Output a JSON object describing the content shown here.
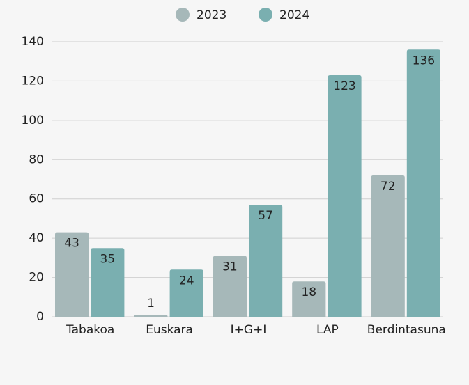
{
  "chart_data": {
    "type": "bar",
    "categories": [
      "Tabakoa",
      "Euskara",
      "I+G+I",
      "LAP",
      "Berdintasuna"
    ],
    "series": [
      {
        "name": "2023",
        "color": "#a6b8b9",
        "values": [
          43,
          1,
          31,
          18,
          72
        ]
      },
      {
        "name": "2024",
        "color": "#7aafb0",
        "values": [
          35,
          24,
          57,
          123,
          136
        ]
      }
    ],
    "ylim": [
      0,
      140
    ],
    "yticks": [
      0,
      20,
      40,
      60,
      80,
      100,
      120,
      140
    ],
    "grid": true,
    "legend": "top"
  }
}
